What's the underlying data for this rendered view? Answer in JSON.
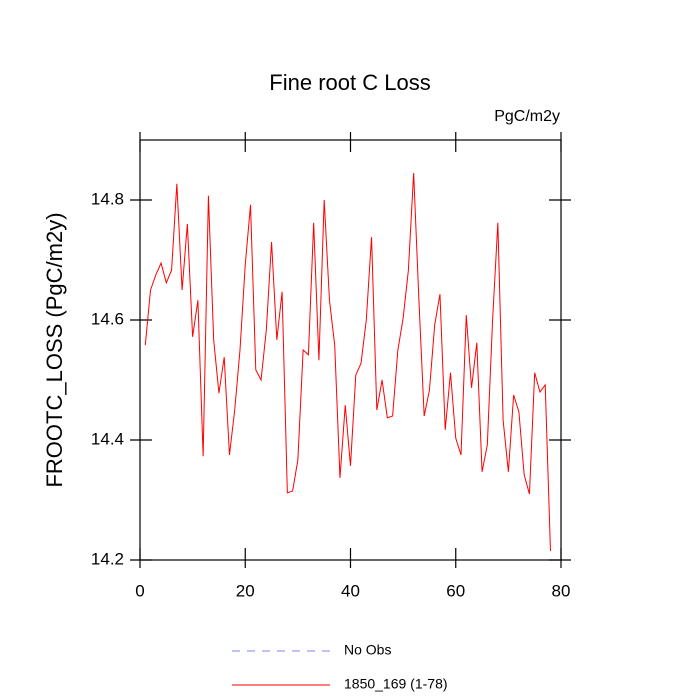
{
  "chart_data": {
    "type": "line",
    "title": "Fine root C Loss",
    "units": "PgC/m2y",
    "y_label": "FROOTC_LOSS  (PgC/m2y)",
    "x": [
      1,
      2,
      3,
      4,
      5,
      6,
      7,
      8,
      9,
      10,
      11,
      12,
      13,
      14,
      15,
      16,
      17,
      18,
      19,
      20,
      21,
      22,
      23,
      24,
      25,
      26,
      27,
      28,
      29,
      30,
      31,
      32,
      33,
      34,
      35,
      36,
      37,
      38,
      39,
      40,
      41,
      42,
      43,
      44,
      45,
      46,
      47,
      48,
      49,
      50,
      51,
      52,
      53,
      54,
      55,
      56,
      57,
      58,
      59,
      60,
      61,
      62,
      63,
      64,
      65,
      66,
      67,
      68,
      69,
      70,
      71,
      72,
      73,
      74,
      75,
      76,
      77,
      78
    ],
    "series": [
      {
        "name": "1850_169 (1-78)",
        "color": "#ff0000",
        "values": [
          14.558,
          14.65,
          14.675,
          14.695,
          14.662,
          14.683,
          14.827,
          14.65,
          14.76,
          14.572,
          14.633,
          14.373,
          14.807,
          14.567,
          14.478,
          14.538,
          14.375,
          14.45,
          14.55,
          14.692,
          14.792,
          14.517,
          14.5,
          14.583,
          14.73,
          14.567,
          14.647,
          14.312,
          14.315,
          14.367,
          14.55,
          14.542,
          14.762,
          14.533,
          14.8,
          14.633,
          14.558,
          14.337,
          14.458,
          14.357,
          14.508,
          14.528,
          14.6,
          14.738,
          14.45,
          14.5,
          14.437,
          14.44,
          14.55,
          14.603,
          14.683,
          14.845,
          14.633,
          14.44,
          14.483,
          14.592,
          14.643,
          14.417,
          14.512,
          14.403,
          14.375,
          14.608,
          14.487,
          14.562,
          14.347,
          14.392,
          14.6,
          14.762,
          14.433,
          14.347,
          14.475,
          14.447,
          14.342,
          14.31,
          14.512,
          14.48,
          14.492,
          14.215
        ]
      }
    ],
    "reference": {
      "name": "No Obs",
      "color": "#8080ff",
      "dashed": true
    },
    "xlim": [
      0,
      80
    ],
    "xticks": [
      0,
      20,
      40,
      60,
      80
    ],
    "ylim": [
      14.2,
      14.9
    ],
    "yticks": [
      14.2,
      14.4,
      14.6,
      14.8
    ]
  }
}
